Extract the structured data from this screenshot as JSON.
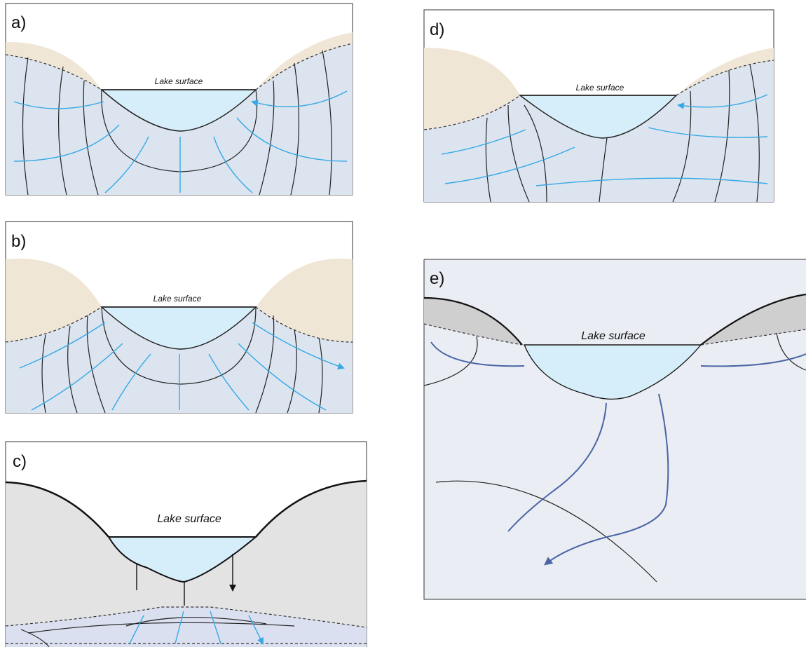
{
  "panels": [
    {
      "label": "a)",
      "lake_label": "Lake surface"
    },
    {
      "label": "b)",
      "lake_label": "Lake surface"
    },
    {
      "label": "c)",
      "lake_label": "Lake surface"
    },
    {
      "label": "d)",
      "lake_label": "Lake surface"
    },
    {
      "label": "e)",
      "lake_label": "Lake surface"
    }
  ]
}
